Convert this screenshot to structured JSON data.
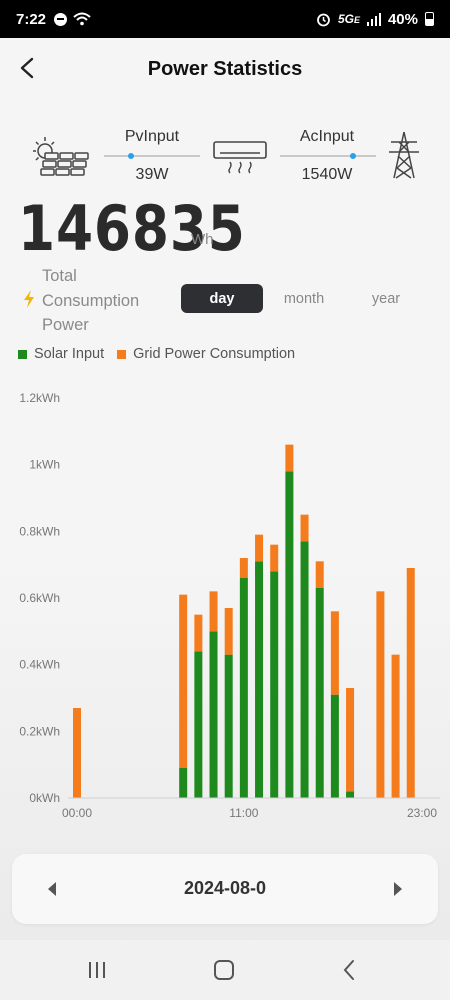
{
  "status_bar": {
    "time": "7:22",
    "network": "5G",
    "network_suffix": "E",
    "battery": "40%"
  },
  "header": {
    "title": "Power Statistics",
    "back_icon": "chevron-left-icon"
  },
  "flow": {
    "pv_label": "PvInput",
    "pv_value": "39W",
    "ac_label": "AcInput",
    "ac_value": "1540W",
    "icons": [
      "solar-panel-icon",
      "air-conditioner-icon",
      "power-tower-icon"
    ],
    "dot_color": "#2aa0e8"
  },
  "summary": {
    "value": "146835",
    "unit": "Wh",
    "label": "Total Consumption Power"
  },
  "tabs": [
    {
      "label": "day",
      "active": true
    },
    {
      "label": "month",
      "active": false
    },
    {
      "label": "year",
      "active": false
    }
  ],
  "legend": [
    {
      "label": "Solar Input",
      "color": "#1e8a1e"
    },
    {
      "label": "Grid Power Consumption",
      "color": "#f47c1c"
    }
  ],
  "chart_data": {
    "type": "bar",
    "stacked": true,
    "categories": [
      "00:00",
      "01:00",
      "02:00",
      "03:00",
      "04:00",
      "05:00",
      "06:00",
      "07:00",
      "08:00",
      "09:00",
      "10:00",
      "11:00",
      "12:00",
      "13:00",
      "14:00",
      "15:00",
      "16:00",
      "17:00",
      "18:00",
      "19:00",
      "20:00",
      "21:00",
      "22:00",
      "23:00"
    ],
    "x_tick_labels": [
      "00:00",
      "11:00",
      "23:00"
    ],
    "y_tick_labels": [
      "0kWh",
      "0.2kWh",
      "0.4kWh",
      "0.6kWh",
      "0.8kWh",
      "1kWh",
      "1.2kWh"
    ],
    "ylim": [
      0,
      1.2
    ],
    "y_unit": "kWh",
    "series": [
      {
        "name": "Solar Input",
        "color": "#1e8a1e",
        "values": [
          0,
          0,
          0,
          0,
          0,
          0,
          0,
          0.09,
          0.44,
          0.5,
          0.43,
          0.66,
          0.71,
          0.68,
          0.98,
          0.77,
          0.63,
          0.31,
          0.02,
          0,
          0,
          0,
          0,
          0
        ]
      },
      {
        "name": "Grid Power Consumption",
        "color": "#f47c1c",
        "values": [
          0.27,
          0,
          0,
          0,
          0,
          0,
          0,
          0.52,
          0.11,
          0.12,
          0.14,
          0.06,
          0.08,
          0.08,
          0.08,
          0.08,
          0.08,
          0.25,
          0.31,
          0,
          0.62,
          0.43,
          0.69,
          0
        ]
      }
    ]
  },
  "date_nav": {
    "date": "2024-08-0",
    "prev_icon": "triangle-left-icon",
    "next_icon": "triangle-right-icon"
  },
  "nav_bar": {
    "icons": [
      "recent-apps-icon",
      "home-icon",
      "back-icon"
    ]
  }
}
